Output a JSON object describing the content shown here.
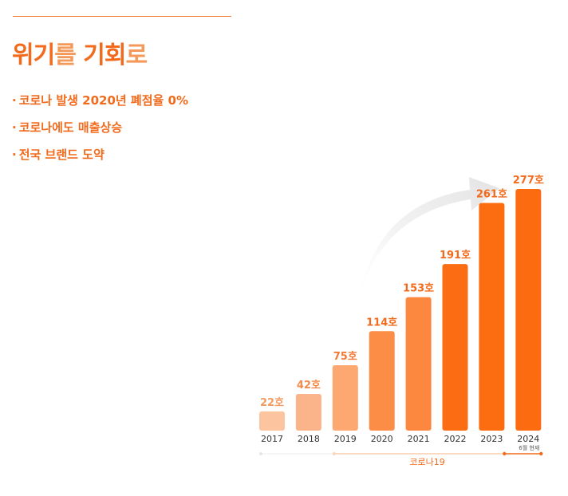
{
  "header": {
    "title_bold_1": "위기",
    "title_light_1": "를 ",
    "title_bold_2": "기회",
    "title_light_2": "로"
  },
  "points": [
    "코로나 발생 2020년 폐점율 0%",
    "코로나에도 매출상승",
    "전국 브랜드 도약"
  ],
  "bullet_symbol": "·",
  "chart_data": {
    "type": "bar",
    "title": "",
    "xlabel": "",
    "ylabel": "",
    "categories": [
      "2017",
      "2018",
      "2019",
      "2020",
      "2021",
      "2022",
      "2023",
      "2024"
    ],
    "values": [
      22,
      42,
      75,
      114,
      153,
      191,
      261,
      277
    ],
    "data_labels": [
      "22호",
      "42호",
      "75호",
      "114호",
      "153호",
      "191호",
      "261호",
      "277호"
    ],
    "unit": "호",
    "ylim": [
      0,
      300
    ],
    "grid": false,
    "colors": [
      "#fcc49f",
      "#fbb38a",
      "#fca870",
      "#fc8d46",
      "#fc8840",
      "#fc6d13",
      "#fc6d12",
      "#fc6b10"
    ],
    "label_colors": [
      "#f39b62",
      "#f28b4b",
      "#f27a36",
      "#f26b1d",
      "#f26b1d",
      "#f26b1d",
      "#f26b1d",
      "#f26b1d"
    ],
    "sub_label_2024": "6월 현재",
    "timeline": {
      "label": "코로나19",
      "start_category": "2019",
      "end_category": "2024"
    }
  },
  "colors": {
    "accent": "#f26b1d",
    "title_light": "#f5995a",
    "timeline_line": "#f9b485"
  }
}
